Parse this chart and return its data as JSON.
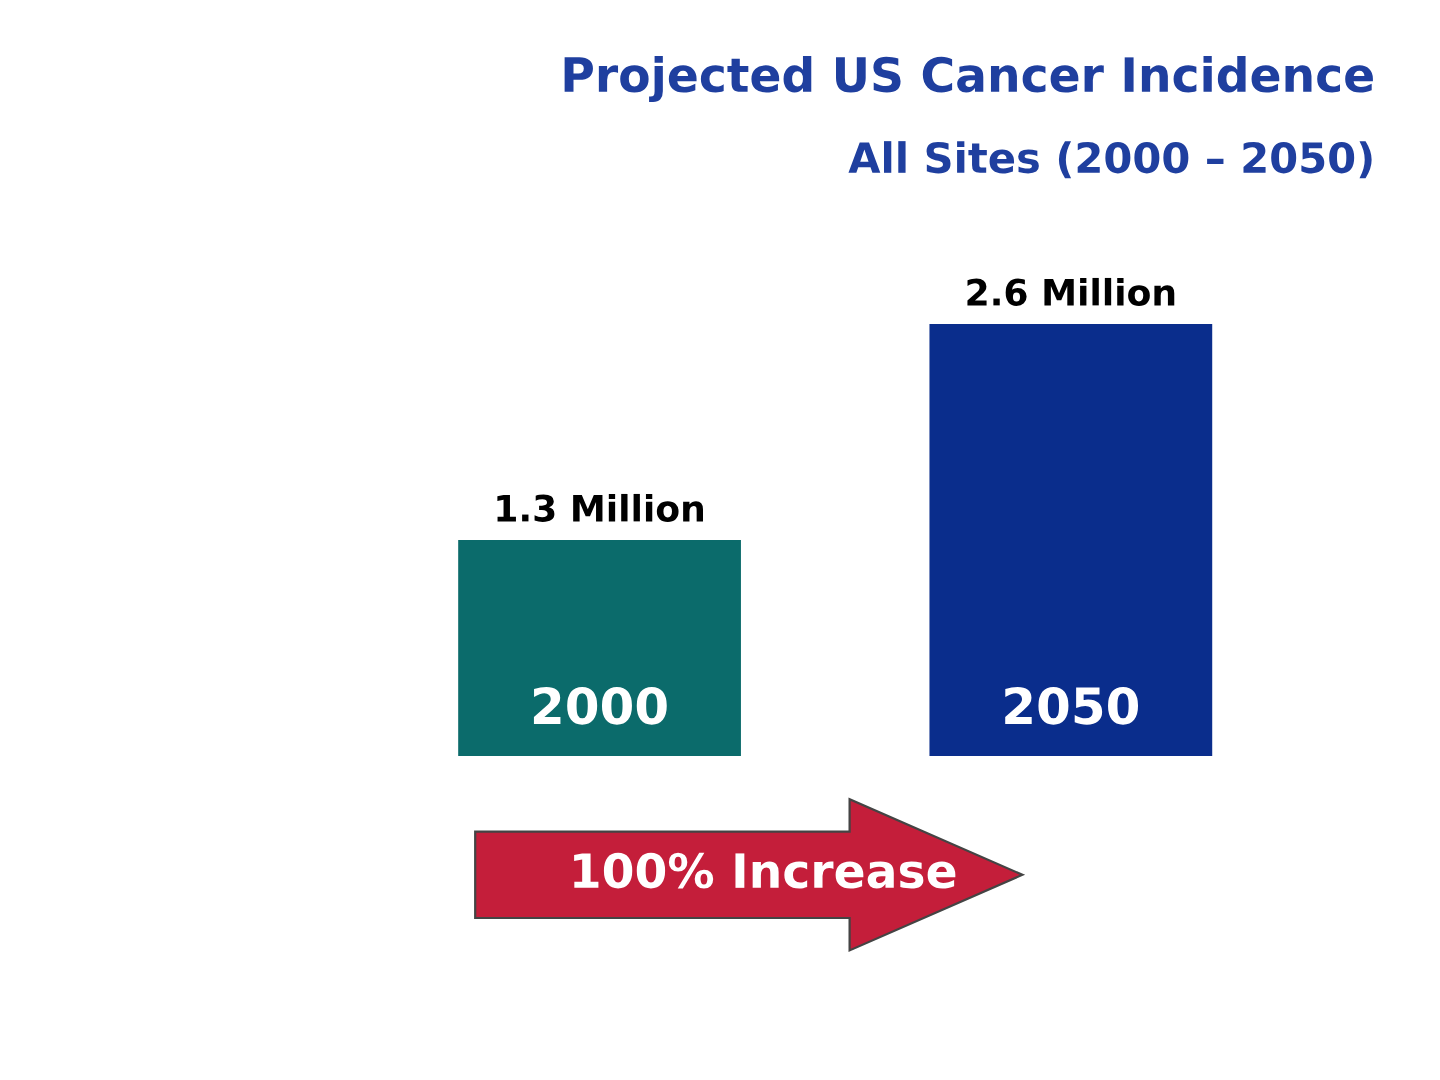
{
  "chart_data": {
    "type": "bar",
    "title": "Projected US Cancer Incidence",
    "subtitle": "All Sites (2000 – 2050)",
    "categories": [
      "2000",
      "2050"
    ],
    "values": [
      1.3,
      2.6
    ],
    "colors": [
      "#0b6b6b",
      "#0a2d8c"
    ],
    "value_labels": [
      "1.3 Million",
      "2.6 Million"
    ],
    "annotations": [
      "100% Increase"
    ]
  }
}
